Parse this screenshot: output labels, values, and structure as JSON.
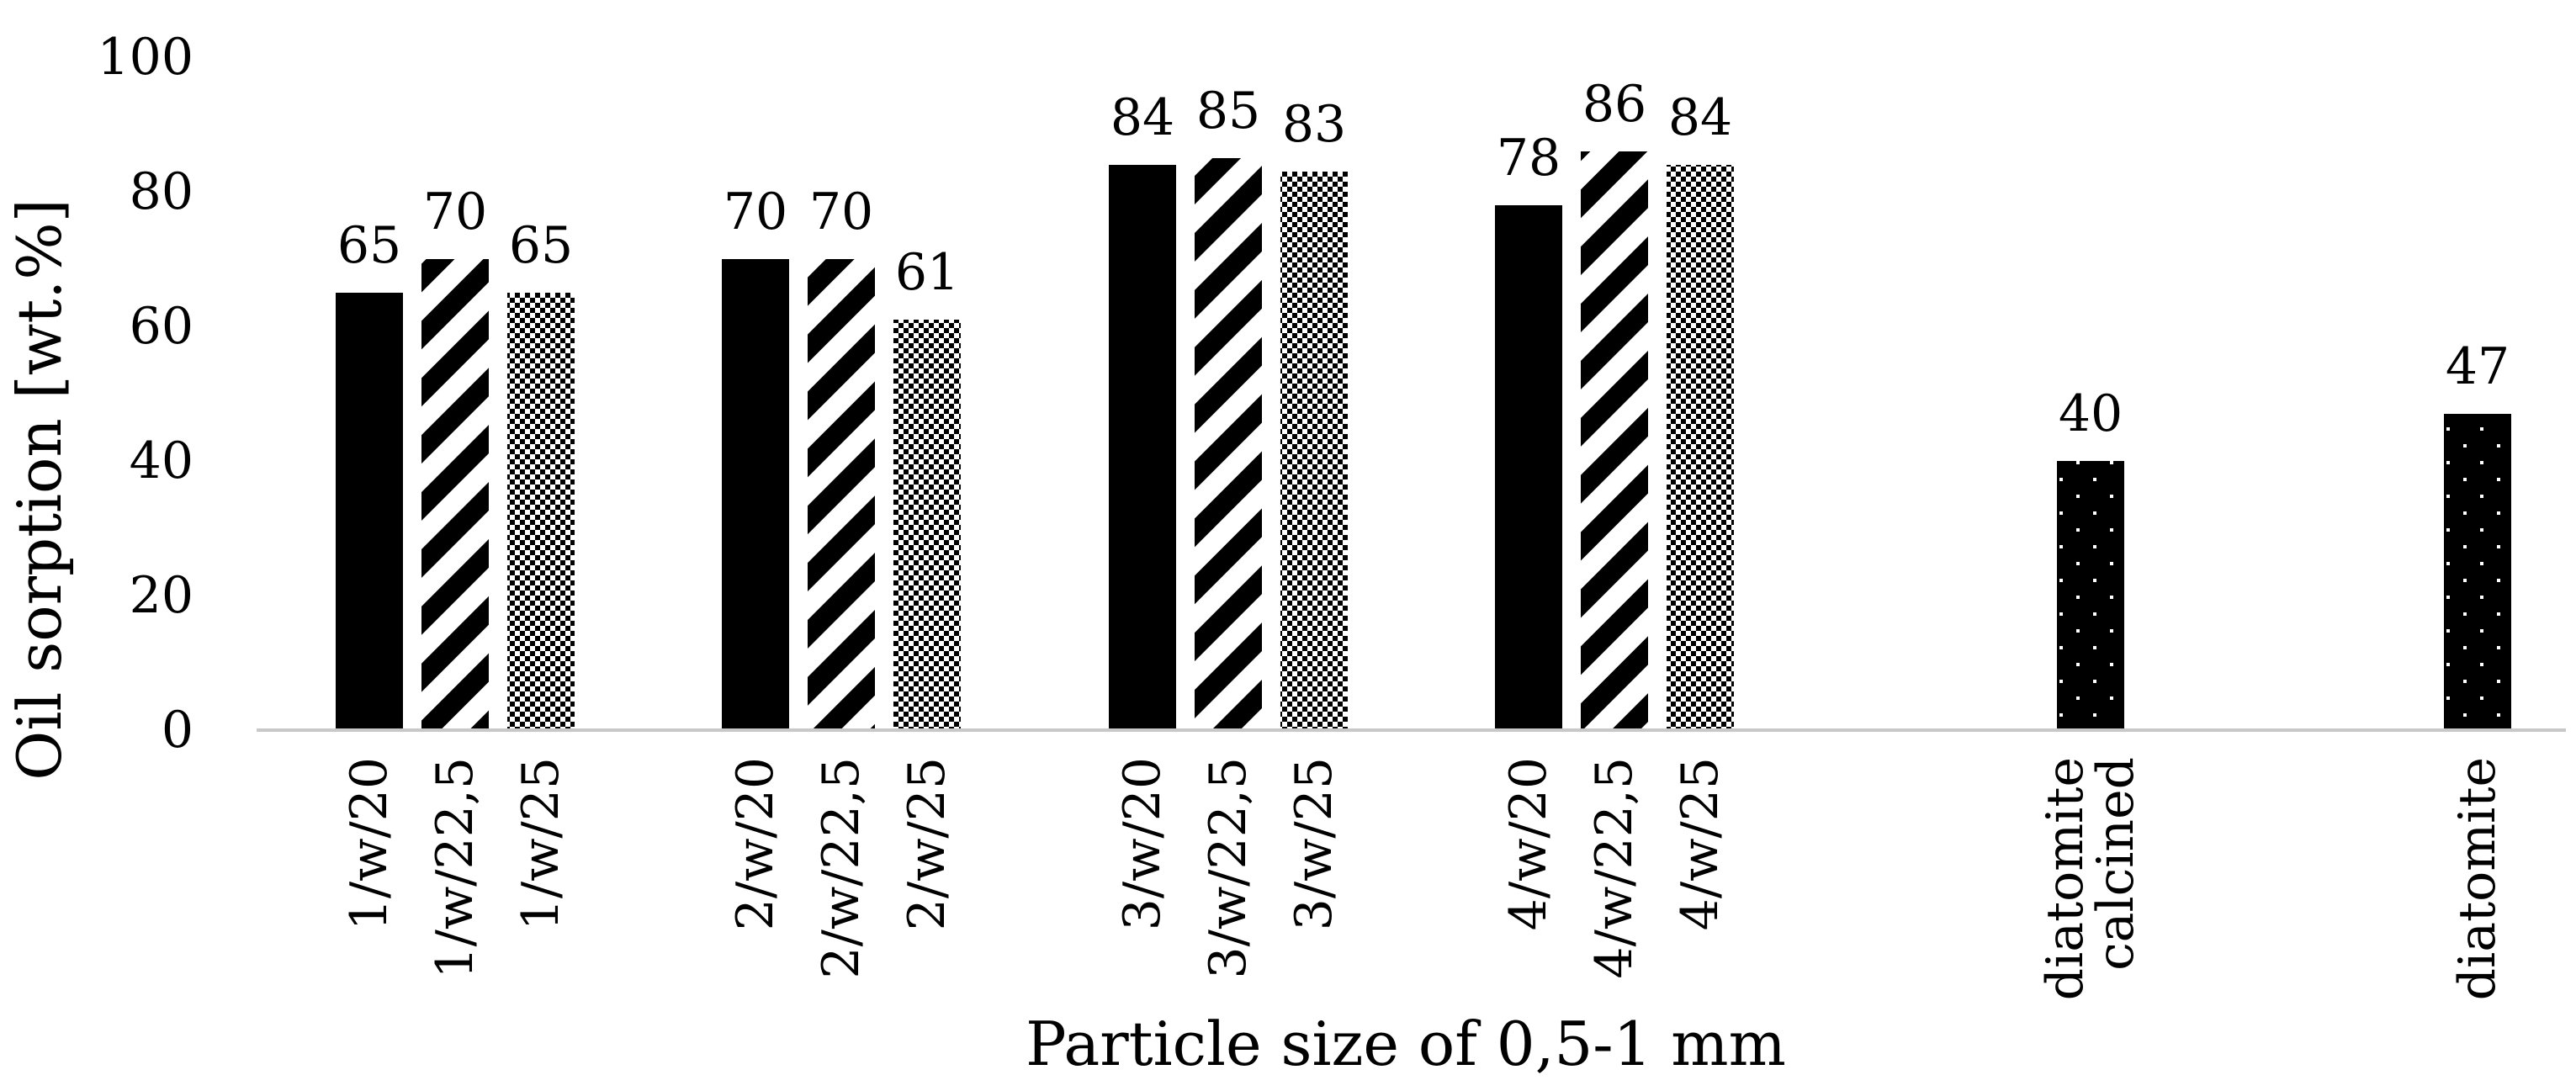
{
  "chart_data": {
    "type": "bar",
    "ylabel": "Oil sorption [wt.%]",
    "xlabel": "Particle size of 0,5-1 mm",
    "ylim": [
      0,
      100
    ],
    "yticks": [
      0,
      20,
      40,
      60,
      80,
      100
    ],
    "grid": false,
    "legend": "none",
    "groups": [
      {
        "bars": [
          {
            "category": "1/w/20",
            "value": 65,
            "pattern": "solid"
          },
          {
            "category": "1/w/22,5",
            "value": 70,
            "pattern": "diagonal"
          },
          {
            "category": "1/w/25",
            "value": 65,
            "pattern": "checker"
          }
        ]
      },
      {
        "bars": [
          {
            "category": "2/w/20",
            "value": 70,
            "pattern": "solid"
          },
          {
            "category": "2/w/22,5",
            "value": 70,
            "pattern": "diagonal"
          },
          {
            "category": "2/w/25",
            "value": 61,
            "pattern": "checker"
          }
        ]
      },
      {
        "bars": [
          {
            "category": "3/w/20",
            "value": 84,
            "pattern": "solid"
          },
          {
            "category": "3/w/22,5",
            "value": 85,
            "pattern": "diagonal"
          },
          {
            "category": "3/w/25",
            "value": 83,
            "pattern": "checker"
          }
        ]
      },
      {
        "bars": [
          {
            "category": "4/w/20",
            "value": 78,
            "pattern": "solid"
          },
          {
            "category": "4/w/22,5",
            "value": 86,
            "pattern": "diagonal"
          },
          {
            "category": "4/w/25",
            "value": 84,
            "pattern": "checker"
          }
        ]
      },
      {
        "bars": [
          {
            "category": "diatomite calcined",
            "value": 40,
            "pattern": "dots"
          }
        ]
      },
      {
        "bars": [
          {
            "category": "diatomite",
            "value": 47,
            "pattern": "dots"
          }
        ]
      }
    ],
    "colors": {
      "bar": "#000000",
      "axis": "#c8c8c8",
      "background": "#ffffff"
    }
  }
}
